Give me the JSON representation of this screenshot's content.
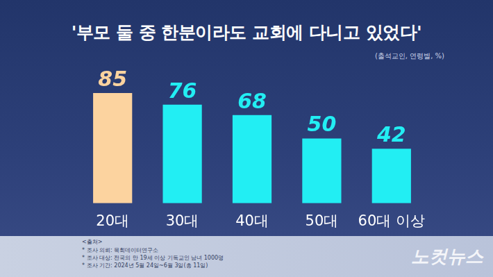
{
  "chart_data": {
    "type": "bar",
    "title": "'부모 둘 중 한분이라도 교회에 다니고 있었다'",
    "subtitle": "(출석교인, 연령별, %)",
    "categories": [
      "20대",
      "30대",
      "40대",
      "50대",
      "60대 이상"
    ],
    "values": [
      85,
      76,
      68,
      50,
      42
    ],
    "colors": [
      "#fcd39f",
      "#22eef3",
      "#22eef3",
      "#22eef3",
      "#22eef3"
    ],
    "ylim": [
      0,
      100
    ],
    "grid": false,
    "data_labels": true,
    "tick_labels": "x",
    "notes": [
      "<출처>",
      "* 조사 의뢰: 목회데이터연구소",
      "* 조사 대상: 전국의 만 19세 이상 기독교인 남녀 1000명",
      "* 조사 기간: 2024년 5월 24일~6월 3일(총 11일)"
    ],
    "watermark": "노컷뉴스"
  }
}
